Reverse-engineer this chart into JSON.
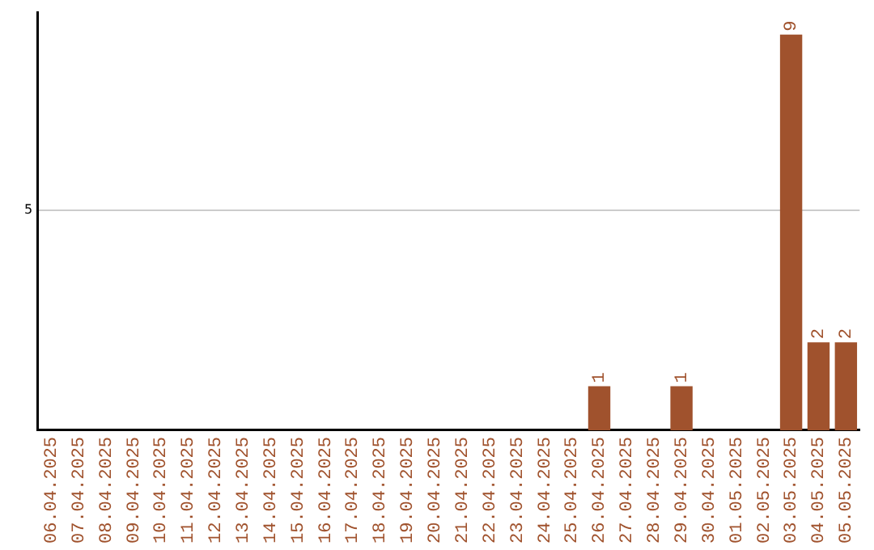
{
  "chart_data": {
    "type": "bar",
    "ylim": [
      0,
      9.5
    ],
    "yticks": [
      5
    ],
    "grid": "y",
    "categories": [
      "06.04.2025",
      "07.04.2025",
      "08.04.2025",
      "09.04.2025",
      "10.04.2025",
      "11.04.2025",
      "12.04.2025",
      "13.04.2025",
      "14.04.2025",
      "15.04.2025",
      "16.04.2025",
      "17.04.2025",
      "18.04.2025",
      "19.04.2025",
      "20.04.2025",
      "21.04.2025",
      "22.04.2025",
      "23.04.2025",
      "24.04.2025",
      "25.04.2025",
      "26.04.2025",
      "27.04.2025",
      "28.04.2025",
      "29.04.2025",
      "30.04.2025",
      "01.05.2025",
      "02.05.2025",
      "03.05.2025",
      "04.05.2025",
      "05.05.2025"
    ],
    "values": [
      null,
      null,
      null,
      null,
      null,
      null,
      null,
      null,
      null,
      null,
      null,
      null,
      null,
      null,
      null,
      null,
      null,
      null,
      null,
      null,
      1,
      null,
      null,
      1,
      null,
      null,
      null,
      9,
      2,
      2
    ],
    "value_labels": [
      null,
      null,
      null,
      null,
      null,
      null,
      null,
      null,
      null,
      null,
      null,
      null,
      null,
      null,
      null,
      null,
      null,
      null,
      null,
      null,
      "1",
      null,
      null,
      "1",
      null,
      null,
      null,
      "9",
      "2",
      "2"
    ],
    "color": "#a0522d",
    "legend": false
  }
}
